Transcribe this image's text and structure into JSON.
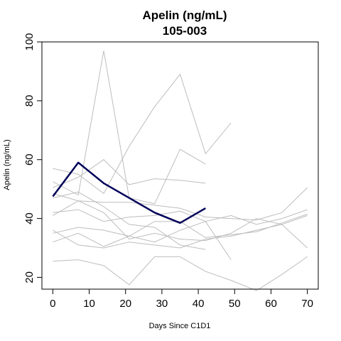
{
  "chart_data": {
    "type": "line",
    "title": "Apelin (ng/mL)",
    "subtitle": "105-003",
    "xlabel": "Days Since C1D1",
    "ylabel": "Apelin (ng/mL)",
    "xlim": [
      -3,
      73
    ],
    "ylim": [
      16,
      100
    ],
    "x_ticks": [
      0,
      10,
      20,
      30,
      40,
      50,
      60,
      70
    ],
    "y_ticks": [
      20,
      40,
      60,
      80,
      100
    ],
    "grid": false,
    "background_series_color": "#bdbdbd",
    "highlight_color": "#00005a",
    "highlight_series": {
      "name": "105-003",
      "x": [
        0,
        7,
        14,
        21,
        28,
        35,
        42
      ],
      "y": [
        47.5,
        59,
        52,
        47,
        42,
        38.5,
        43.5
      ]
    },
    "series": [
      {
        "x": [
          0,
          7,
          14,
          21,
          28,
          35,
          42,
          49
        ],
        "y": [
          57,
          55,
          48.5,
          64.5,
          78,
          89,
          62,
          72.5
        ]
      },
      {
        "x": [
          0,
          7,
          14,
          21,
          28,
          35,
          42
        ],
        "y": [
          52.5,
          48,
          97,
          47,
          45,
          63.5,
          58.5
        ]
      },
      {
        "x": [
          0,
          7,
          14,
          21,
          28,
          35,
          42
        ],
        "y": [
          50.5,
          54,
          60,
          51.5,
          53.5,
          53,
          52
        ]
      },
      {
        "x": [
          0,
          7,
          14,
          21,
          28,
          35,
          42,
          49,
          56,
          63,
          70
        ],
        "y": [
          48.5,
          46,
          45.5,
          45.5,
          44.5,
          43.5,
          40.5,
          40,
          39.5,
          42,
          50.5
        ]
      },
      {
        "x": [
          0,
          7,
          14,
          21,
          28,
          35,
          42
        ],
        "y": [
          47,
          49,
          44,
          38,
          37,
          31,
          29.5
        ]
      },
      {
        "x": [
          0,
          7,
          14,
          21,
          28,
          35,
          42,
          49
        ],
        "y": [
          42,
          43,
          39,
          40.5,
          41,
          42.5,
          39,
          26
        ]
      },
      {
        "x": [
          0,
          7,
          14,
          21,
          28,
          35,
          42,
          49,
          56,
          63,
          70
        ],
        "y": [
          35,
          37,
          36,
          34,
          32,
          36,
          39,
          41,
          38,
          40,
          43
        ]
      },
      {
        "x": [
          0,
          7,
          14,
          21,
          28,
          35,
          42,
          49,
          56,
          63,
          70
        ],
        "y": [
          41,
          46,
          42,
          33,
          35,
          33,
          32.5,
          35,
          40,
          38,
          30
        ]
      },
      {
        "x": [
          0,
          7,
          14,
          21,
          28,
          35,
          42,
          49,
          56,
          63,
          70
        ],
        "y": [
          36,
          31,
          30,
          32,
          31,
          30,
          33,
          34,
          36,
          38,
          41
        ]
      },
      {
        "x": [
          0,
          7,
          14,
          21,
          28,
          35,
          42,
          49,
          56,
          63,
          70
        ],
        "y": [
          32,
          35,
          30.5,
          34,
          39,
          39,
          33.5,
          34.5,
          35.5,
          38.5,
          41.5
        ]
      },
      {
        "x": [
          0,
          7,
          14,
          21,
          28,
          35,
          42,
          49,
          56,
          63,
          70
        ],
        "y": [
          25.5,
          26,
          24,
          17.5,
          27,
          27,
          22,
          19,
          15.5,
          21,
          27
        ]
      }
    ]
  }
}
